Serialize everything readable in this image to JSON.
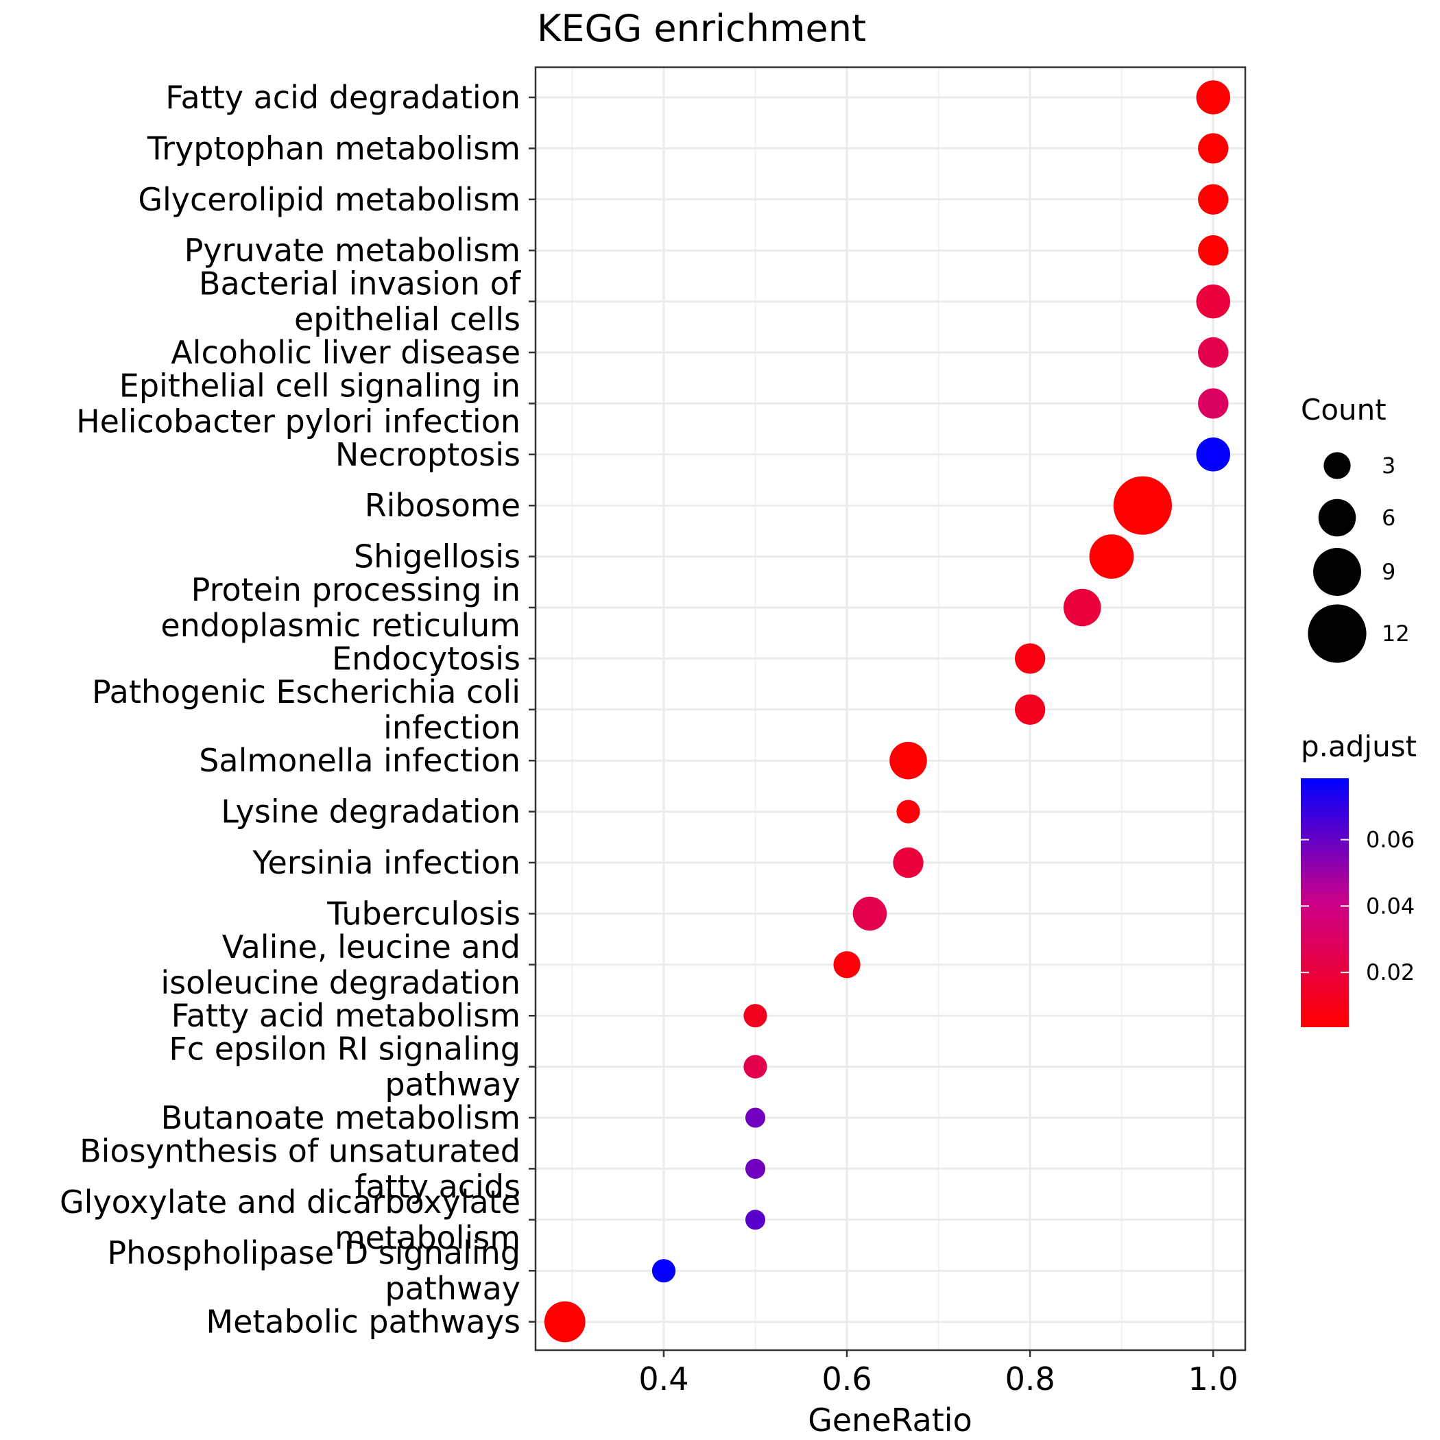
{
  "chart_data": {
    "type": "scatter",
    "title": "KEGG enrichment",
    "xlabel": "GeneRatio",
    "ylabel": "",
    "xlim": [
      0.26,
      1.035
    ],
    "xticks": [
      {
        "value": 0.4,
        "label": "0.4"
      },
      {
        "value": 0.6,
        "label": "0.6"
      },
      {
        "value": 0.8,
        "label": "0.8"
      },
      {
        "value": 1.0,
        "label": "1.0"
      }
    ],
    "grid": true,
    "categories": [
      "Fatty acid degradation",
      "Tryptophan metabolism",
      "Glycerolipid metabolism",
      "Pyruvate metabolism",
      "Bacterial invasion of\nepithelial cells",
      "Alcoholic liver disease",
      "Epithelial cell signaling in\nHelicobacter pylori infection",
      "Necroptosis",
      "Ribosome",
      "Shigellosis",
      "Protein processing in\nendoplasmic reticulum",
      "Endocytosis",
      "Pathogenic Escherichia coli\ninfection",
      "Salmonella infection",
      "Lysine degradation",
      "Yersinia infection",
      "Tuberculosis",
      "Valine, leucine and\nisoleucine degradation",
      "Fatty acid metabolism",
      "Fc epsilon RI signaling\npathway",
      "Butanoate metabolism",
      "Biosynthesis of unsaturated\nfatty acids",
      "Glyoxylate and dicarboxylate\nmetabolism",
      "Phospholipase D signaling\npathway",
      "Metabolic pathways"
    ],
    "points": [
      {
        "gene_ratio": 1.0,
        "count": 5,
        "p_adjust": 0.004
      },
      {
        "gene_ratio": 1.0,
        "count": 4,
        "p_adjust": 0.004
      },
      {
        "gene_ratio": 1.0,
        "count": 4,
        "p_adjust": 0.004
      },
      {
        "gene_ratio": 1.0,
        "count": 4,
        "p_adjust": 0.004
      },
      {
        "gene_ratio": 1.0,
        "count": 5,
        "p_adjust": 0.02
      },
      {
        "gene_ratio": 1.0,
        "count": 4,
        "p_adjust": 0.025
      },
      {
        "gene_ratio": 1.0,
        "count": 4,
        "p_adjust": 0.03
      },
      {
        "gene_ratio": 1.0,
        "count": 5,
        "p_adjust": 0.078
      },
      {
        "gene_ratio": 0.923,
        "count": 12,
        "p_adjust": 0.004
      },
      {
        "gene_ratio": 0.889,
        "count": 8,
        "p_adjust": 0.004
      },
      {
        "gene_ratio": 0.857,
        "count": 6,
        "p_adjust": 0.02
      },
      {
        "gene_ratio": 0.8,
        "count": 4,
        "p_adjust": 0.008
      },
      {
        "gene_ratio": 0.8,
        "count": 4,
        "p_adjust": 0.012
      },
      {
        "gene_ratio": 0.667,
        "count": 6,
        "p_adjust": 0.004
      },
      {
        "gene_ratio": 0.667,
        "count": 2,
        "p_adjust": 0.006
      },
      {
        "gene_ratio": 0.667,
        "count": 4,
        "p_adjust": 0.02
      },
      {
        "gene_ratio": 0.625,
        "count": 5,
        "p_adjust": 0.025
      },
      {
        "gene_ratio": 0.6,
        "count": 3,
        "p_adjust": 0.006
      },
      {
        "gene_ratio": 0.5,
        "count": 2,
        "p_adjust": 0.012
      },
      {
        "gene_ratio": 0.5,
        "count": 2,
        "p_adjust": 0.025
      },
      {
        "gene_ratio": 0.5,
        "count": 1,
        "p_adjust": 0.058
      },
      {
        "gene_ratio": 0.5,
        "count": 1,
        "p_adjust": 0.058
      },
      {
        "gene_ratio": 0.5,
        "count": 1,
        "p_adjust": 0.062
      },
      {
        "gene_ratio": 0.4,
        "count": 2,
        "p_adjust": 0.078
      },
      {
        "gene_ratio": 0.292,
        "count": 7,
        "p_adjust": 0.004
      }
    ],
    "size_legend": {
      "title": "Count",
      "values": [
        3,
        6,
        9,
        12
      ]
    },
    "color_legend": {
      "title": "p.adjust",
      "range": [
        0.0035,
        0.0785
      ],
      "ticks": [
        {
          "value": 0.02,
          "label": "0.02"
        },
        {
          "value": 0.04,
          "label": "0.04"
        },
        {
          "value": 0.06,
          "label": "0.06"
        }
      ],
      "low_color": "#ff0000",
      "high_color": "#0000ff"
    },
    "legend_position": "right"
  },
  "colors": {
    "panel_border": "#333333",
    "grid_major": "#ebebeb",
    "grid_minor": "#f4f4f4",
    "low_p": "#ff0000",
    "high_p": "#0000ff"
  }
}
